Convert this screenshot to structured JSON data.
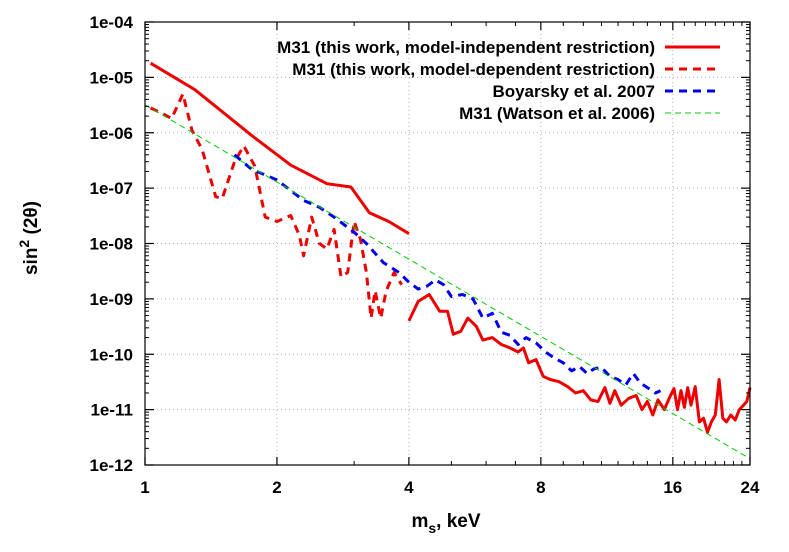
{
  "chart_data": {
    "type": "line",
    "title": "",
    "xlabel": {
      "main": "m",
      "sub": "s",
      "rest": ", keV"
    },
    "ylabel": {
      "main": "sin",
      "sup": "2",
      "rest": " (2θ)"
    },
    "x_scale": "log",
    "y_scale": "log",
    "xlim": [
      1,
      24
    ],
    "ylim": [
      1e-12,
      0.0001
    ],
    "x_ticks": [
      1,
      2,
      4,
      8,
      16,
      24
    ],
    "x_tick_labels": [
      "1",
      "2",
      "4",
      "8",
      "16",
      "24"
    ],
    "y_ticks": [
      1e-12,
      1e-11,
      1e-10,
      1e-09,
      1e-08,
      1e-07,
      1e-06,
      1e-05,
      0.0001
    ],
    "y_tick_labels": [
      "1e-12",
      "1e-11",
      "1e-10",
      "1e-09",
      "1e-08",
      "1e-07",
      "1e-06",
      "1e-05",
      "1e-04"
    ],
    "grid": true,
    "legend_position": "top-right",
    "series": [
      {
        "name": "M31 (this work, model-independent restriction)",
        "color": "#ee0000",
        "style": "solid",
        "segments": [
          [
            [
              1.03,
              1.8e-05
            ],
            [
              1.3,
              6e-06
            ],
            [
              1.75,
              9e-07
            ],
            [
              2.15,
              2.6e-07
            ],
            [
              2.6,
              1.2e-07
            ],
            [
              2.95,
              1.05e-07
            ],
            [
              3.25,
              3.6e-08
            ],
            [
              3.6,
              2.5e-08
            ],
            [
              4.0,
              1.5e-08
            ]
          ],
          [
            [
              4.0,
              4e-10
            ],
            [
              4.2,
              9e-10
            ],
            [
              4.45,
              1.2e-09
            ],
            [
              4.7,
              6e-10
            ],
            [
              4.9,
              6e-10
            ],
            [
              5.05,
              2.3e-10
            ],
            [
              5.25,
              2.6e-10
            ],
            [
              5.45,
              4.5e-10
            ],
            [
              5.7,
              3.2e-10
            ],
            [
              5.9,
              1.8e-10
            ],
            [
              6.2,
              2e-10
            ],
            [
              6.5,
              1.5e-10
            ],
            [
              6.8,
              1.3e-10
            ],
            [
              7.1,
              1.1e-10
            ],
            [
              7.3,
              1.3e-10
            ],
            [
              7.5,
              7e-11
            ],
            [
              7.8,
              8e-11
            ],
            [
              8.1,
              4e-11
            ],
            [
              8.4,
              3.5e-11
            ],
            [
              8.8,
              3.2e-11
            ],
            [
              9.2,
              2.6e-11
            ],
            [
              9.6,
              2e-11
            ],
            [
              10.0,
              2.2e-11
            ],
            [
              10.4,
              1.5e-11
            ],
            [
              10.8,
              1.4e-11
            ],
            [
              11.2,
              2.5e-11
            ],
            [
              11.5,
              1.3e-11
            ],
            [
              11.8,
              2.2e-11
            ],
            [
              12.2,
              1.2e-11
            ],
            [
              12.7,
              1.6e-11
            ],
            [
              13.2,
              1.8e-11
            ],
            [
              13.6,
              1e-11
            ],
            [
              14.0,
              1.4e-11
            ],
            [
              14.4,
              8e-12
            ],
            [
              14.8,
              1.5e-11
            ],
            [
              15.3,
              1e-11
            ],
            [
              15.7,
              1.6e-11
            ],
            [
              16.1,
              2.4e-11
            ],
            [
              16.4,
              1e-11
            ],
            [
              16.7,
              2.2e-11
            ],
            [
              17.0,
              1.1e-11
            ],
            [
              17.3,
              2.5e-11
            ],
            [
              17.6,
              1.2e-11
            ],
            [
              18.0,
              2.6e-11
            ],
            [
              18.4,
              6e-12
            ],
            [
              18.8,
              7e-12
            ],
            [
              19.2,
              3.9e-12
            ],
            [
              19.6,
              6e-12
            ],
            [
              20.0,
              8e-12
            ],
            [
              20.4,
              3.5e-11
            ],
            [
              20.8,
              7e-12
            ],
            [
              21.2,
              6e-12
            ],
            [
              21.7,
              8e-12
            ],
            [
              22.2,
              6.5e-12
            ],
            [
              22.7,
              1e-11
            ],
            [
              23.2,
              1.2e-11
            ],
            [
              23.6,
              1.4e-11
            ],
            [
              24.0,
              2.5e-11
            ]
          ]
        ]
      },
      {
        "name": "M31 (this work, model-dependent restriction)",
        "color": "#ee0000",
        "style": "dashed",
        "segments": [
          [
            [
              1.03,
              2.8e-06
            ],
            [
              1.1,
              2.2e-06
            ],
            [
              1.15,
              1.8e-06
            ],
            [
              1.22,
              5e-06
            ],
            [
              1.28,
              1.1e-06
            ],
            [
              1.35,
              5e-07
            ],
            [
              1.45,
              7e-08
            ],
            [
              1.5,
              6.5e-08
            ],
            [
              1.6,
              3e-07
            ],
            [
              1.68,
              5.8e-07
            ],
            [
              1.78,
              2.5e-07
            ],
            [
              1.88,
              3e-08
            ],
            [
              2.0,
              2.5e-08
            ],
            [
              2.15,
              3.2e-08
            ],
            [
              2.25,
              1.4e-08
            ],
            [
              2.3,
              6e-09
            ],
            [
              2.4,
              3e-08
            ],
            [
              2.5,
              1e-08
            ],
            [
              2.6,
              8e-09
            ],
            [
              2.7,
              1.8e-08
            ],
            [
              2.8,
              2.5e-09
            ],
            [
              2.9,
              3e-09
            ],
            [
              3.0,
              2.5e-08
            ],
            [
              3.1,
              1.2e-08
            ],
            [
              3.2,
              3e-09
            ],
            [
              3.28,
              4.5e-10
            ],
            [
              3.35,
              1.4e-09
            ],
            [
              3.45,
              4.5e-10
            ],
            [
              3.55,
              1.4e-09
            ],
            [
              3.7,
              3e-09
            ],
            [
              3.85,
              1.8e-09
            ]
          ]
        ]
      },
      {
        "name": "Boyarsky et al. 2007",
        "color": "#0000ee",
        "style": "dashed",
        "segments": [
          [
            [
              1.6,
              4e-07
            ],
            [
              1.75,
              2.2e-07
            ],
            [
              2.0,
              1.4e-07
            ],
            [
              2.3,
              6e-08
            ],
            [
              2.5,
              4.5e-08
            ],
            [
              2.7,
              3e-08
            ],
            [
              3.0,
              1.6e-08
            ],
            [
              3.2,
              1e-08
            ],
            [
              3.5,
              4.5e-09
            ],
            [
              3.8,
              3e-09
            ],
            [
              4.0,
              2e-09
            ],
            [
              4.2,
              1.5e-09
            ],
            [
              4.4,
              1.7e-09
            ],
            [
              4.6,
              2.2e-09
            ],
            [
              4.8,
              1.8e-09
            ],
            [
              5.0,
              1.1e-09
            ],
            [
              5.3,
              1.2e-09
            ],
            [
              5.6,
              1e-09
            ],
            [
              5.9,
              4.5e-10
            ],
            [
              6.2,
              5.5e-10
            ],
            [
              6.5,
              2.5e-10
            ],
            [
              6.8,
              2.2e-10
            ],
            [
              7.1,
              1.5e-10
            ],
            [
              7.4,
              2e-10
            ],
            [
              7.8,
              1.6e-10
            ],
            [
              8.2,
              1.1e-10
            ],
            [
              8.6,
              8.5e-11
            ],
            [
              9.0,
              7e-11
            ],
            [
              9.4,
              5e-11
            ],
            [
              9.8,
              6e-11
            ],
            [
              10.2,
              4.5e-11
            ],
            [
              10.6,
              5.5e-11
            ],
            [
              11.0,
              5.8e-11
            ],
            [
              11.5,
              4e-11
            ],
            [
              12.0,
              3.5e-11
            ],
            [
              12.5,
              2.8e-11
            ],
            [
              13.0,
              4.5e-11
            ],
            [
              13.5,
              3e-11
            ],
            [
              14.0,
              2.5e-11
            ],
            [
              14.6,
              2e-11
            ],
            [
              15.0,
              2.2e-11
            ]
          ]
        ]
      },
      {
        "name": "M31 (Watson et al. 2006)",
        "color": "#00cc00",
        "style": "fine-dashed",
        "segments": [
          [
            [
              1.0,
              3.2e-06
            ],
            [
              24.0,
              1.3e-12
            ]
          ]
        ]
      }
    ]
  }
}
